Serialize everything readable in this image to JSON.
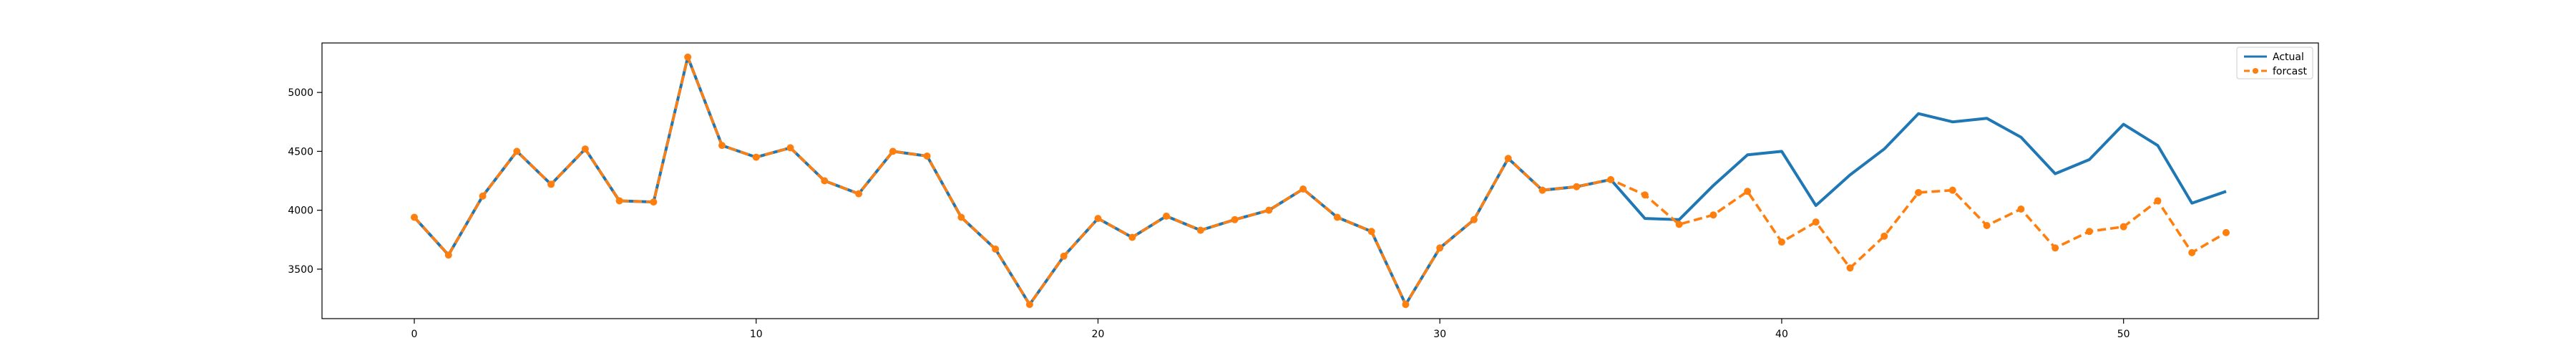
{
  "chart_data": {
    "type": "line",
    "title": "",
    "xlabel": "",
    "ylabel": "",
    "xlim": [
      -2.7,
      55.7
    ],
    "ylim": [
      3080,
      5420
    ],
    "xticks": [
      0,
      10,
      20,
      30,
      40,
      50
    ],
    "yticks": [
      3500,
      4000,
      4500,
      5000
    ],
    "grid": false,
    "legend": "top-right",
    "colors": {
      "actual": "#1f77b4",
      "forecast": "#ff7f0e"
    },
    "x": [
      0,
      1,
      2,
      3,
      4,
      5,
      6,
      7,
      8,
      9,
      10,
      11,
      12,
      13,
      14,
      15,
      16,
      17,
      18,
      19,
      20,
      21,
      22,
      23,
      24,
      25,
      26,
      27,
      28,
      29,
      30,
      31,
      32,
      33,
      34,
      35,
      36,
      37,
      38,
      39,
      40,
      41,
      42,
      43,
      44,
      45,
      46,
      47,
      48,
      49,
      50,
      51,
      52,
      53
    ],
    "series": [
      {
        "name": "Actual",
        "style": "solid",
        "values": [
          3940,
          3620,
          4120,
          4500,
          4220,
          4520,
          4080,
          4070,
          5300,
          4550,
          4450,
          4530,
          4250,
          4140,
          4500,
          4460,
          3940,
          3670,
          3200,
          3610,
          3930,
          3770,
          3950,
          3830,
          3920,
          4000,
          4180,
          3940,
          3820,
          3200,
          3680,
          3920,
          4440,
          4170,
          4200,
          4260,
          3930,
          3920,
          4210,
          4470,
          4500,
          4040,
          4300,
          4520,
          4820,
          4750,
          4780,
          4620,
          4310,
          4430,
          4730,
          4550,
          4060,
          4160
        ]
      },
      {
        "name": "forcast",
        "style": "dashed",
        "marker": "circle",
        "values": [
          3940,
          3620,
          4120,
          4500,
          4220,
          4520,
          4080,
          4070,
          5300,
          4550,
          4450,
          4530,
          4250,
          4140,
          4500,
          4460,
          3940,
          3670,
          3200,
          3610,
          3930,
          3770,
          3950,
          3830,
          3920,
          4000,
          4180,
          3940,
          3820,
          3200,
          3680,
          3920,
          4440,
          4170,
          4200,
          4260,
          4130,
          3880,
          3960,
          4160,
          3730,
          3900,
          3510,
          3780,
          4150,
          4170,
          3870,
          4010,
          3680,
          3820,
          3860,
          4080,
          3640,
          3810
        ]
      }
    ]
  }
}
